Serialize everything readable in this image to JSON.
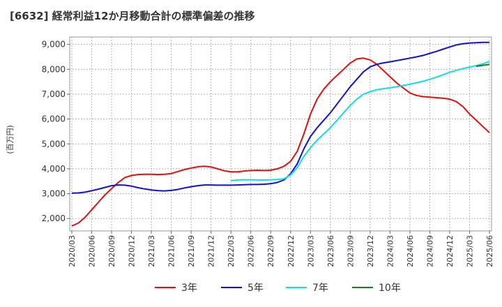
{
  "chart_data": {
    "type": "line",
    "title": "[6632]  経常利益12か月移動合計の標準偏差の推移",
    "ylabel": "(百万円)",
    "xlabel": "",
    "ylim": [
      1500,
      9300
    ],
    "yticks": [
      2000,
      3000,
      4000,
      5000,
      6000,
      7000,
      8000,
      9000
    ],
    "ytick_labels": [
      "2,000",
      "3,000",
      "4,000",
      "5,000",
      "6,000",
      "7,000",
      "8,000",
      "9,000"
    ],
    "xticks": [
      "2020/03",
      "2020/06",
      "2020/09",
      "2020/12",
      "2021/03",
      "2021/06",
      "2021/09",
      "2021/12",
      "2022/03",
      "2022/06",
      "2022/09",
      "2022/12",
      "2023/03",
      "2023/06",
      "2023/09",
      "2023/12",
      "2024/03",
      "2024/06",
      "2024/09",
      "2024/12",
      "2025/03",
      "2025/06"
    ],
    "grid": true,
    "legend_position": "bottom",
    "series": [
      {
        "name": "3年",
        "color": "#dd1111",
        "start_index": 0,
        "values": [
          1700,
          1820,
          2050,
          2350,
          2650,
          2950,
          3200,
          3450,
          3650,
          3730,
          3770,
          3780,
          3780,
          3770,
          3780,
          3810,
          3890,
          3970,
          4030,
          4080,
          4100,
          4070,
          4000,
          3920,
          3880,
          3880,
          3910,
          3930,
          3940,
          3930,
          3940,
          4000,
          4100,
          4300,
          4700,
          5400,
          6200,
          6800,
          7200,
          7500,
          7750,
          8000,
          8250,
          8420,
          8450,
          8380,
          8200,
          7950,
          7700,
          7450,
          7250,
          7050,
          6950,
          6900,
          6880,
          6860,
          6840,
          6800,
          6700,
          6500,
          6200,
          5950,
          5700,
          5450
        ]
      },
      {
        "name": "5年",
        "color": "#1111cc",
        "start_index": 0,
        "values": [
          3020,
          3030,
          3060,
          3120,
          3180,
          3250,
          3320,
          3350,
          3340,
          3300,
          3240,
          3190,
          3150,
          3120,
          3110,
          3130,
          3170,
          3230,
          3280,
          3320,
          3350,
          3350,
          3340,
          3340,
          3340,
          3350,
          3360,
          3370,
          3370,
          3380,
          3400,
          3450,
          3550,
          3800,
          4200,
          4800,
          5300,
          5650,
          5950,
          6250,
          6600,
          6950,
          7300,
          7600,
          7900,
          8100,
          8200,
          8260,
          8300,
          8350,
          8400,
          8450,
          8500,
          8560,
          8640,
          8720,
          8810,
          8900,
          8980,
          9030,
          9060,
          9070,
          9080,
          9080
        ]
      },
      {
        "name": "7年",
        "color": "#11dddd",
        "start_index": 24,
        "values": [
          3520,
          3550,
          3560,
          3560,
          3550,
          3550,
          3560,
          3570,
          3600,
          3750,
          4050,
          4500,
          4850,
          5150,
          5400,
          5650,
          5950,
          6250,
          6550,
          6800,
          7000,
          7100,
          7180,
          7220,
          7260,
          7300,
          7350,
          7400,
          7460,
          7520,
          7600,
          7680,
          7780,
          7880,
          7960,
          8030,
          8090,
          8150,
          8220,
          8320
        ]
      },
      {
        "name": "10年",
        "color": "#227722",
        "start_index": 61,
        "values": [
          8120,
          8160,
          8200
        ]
      }
    ]
  }
}
